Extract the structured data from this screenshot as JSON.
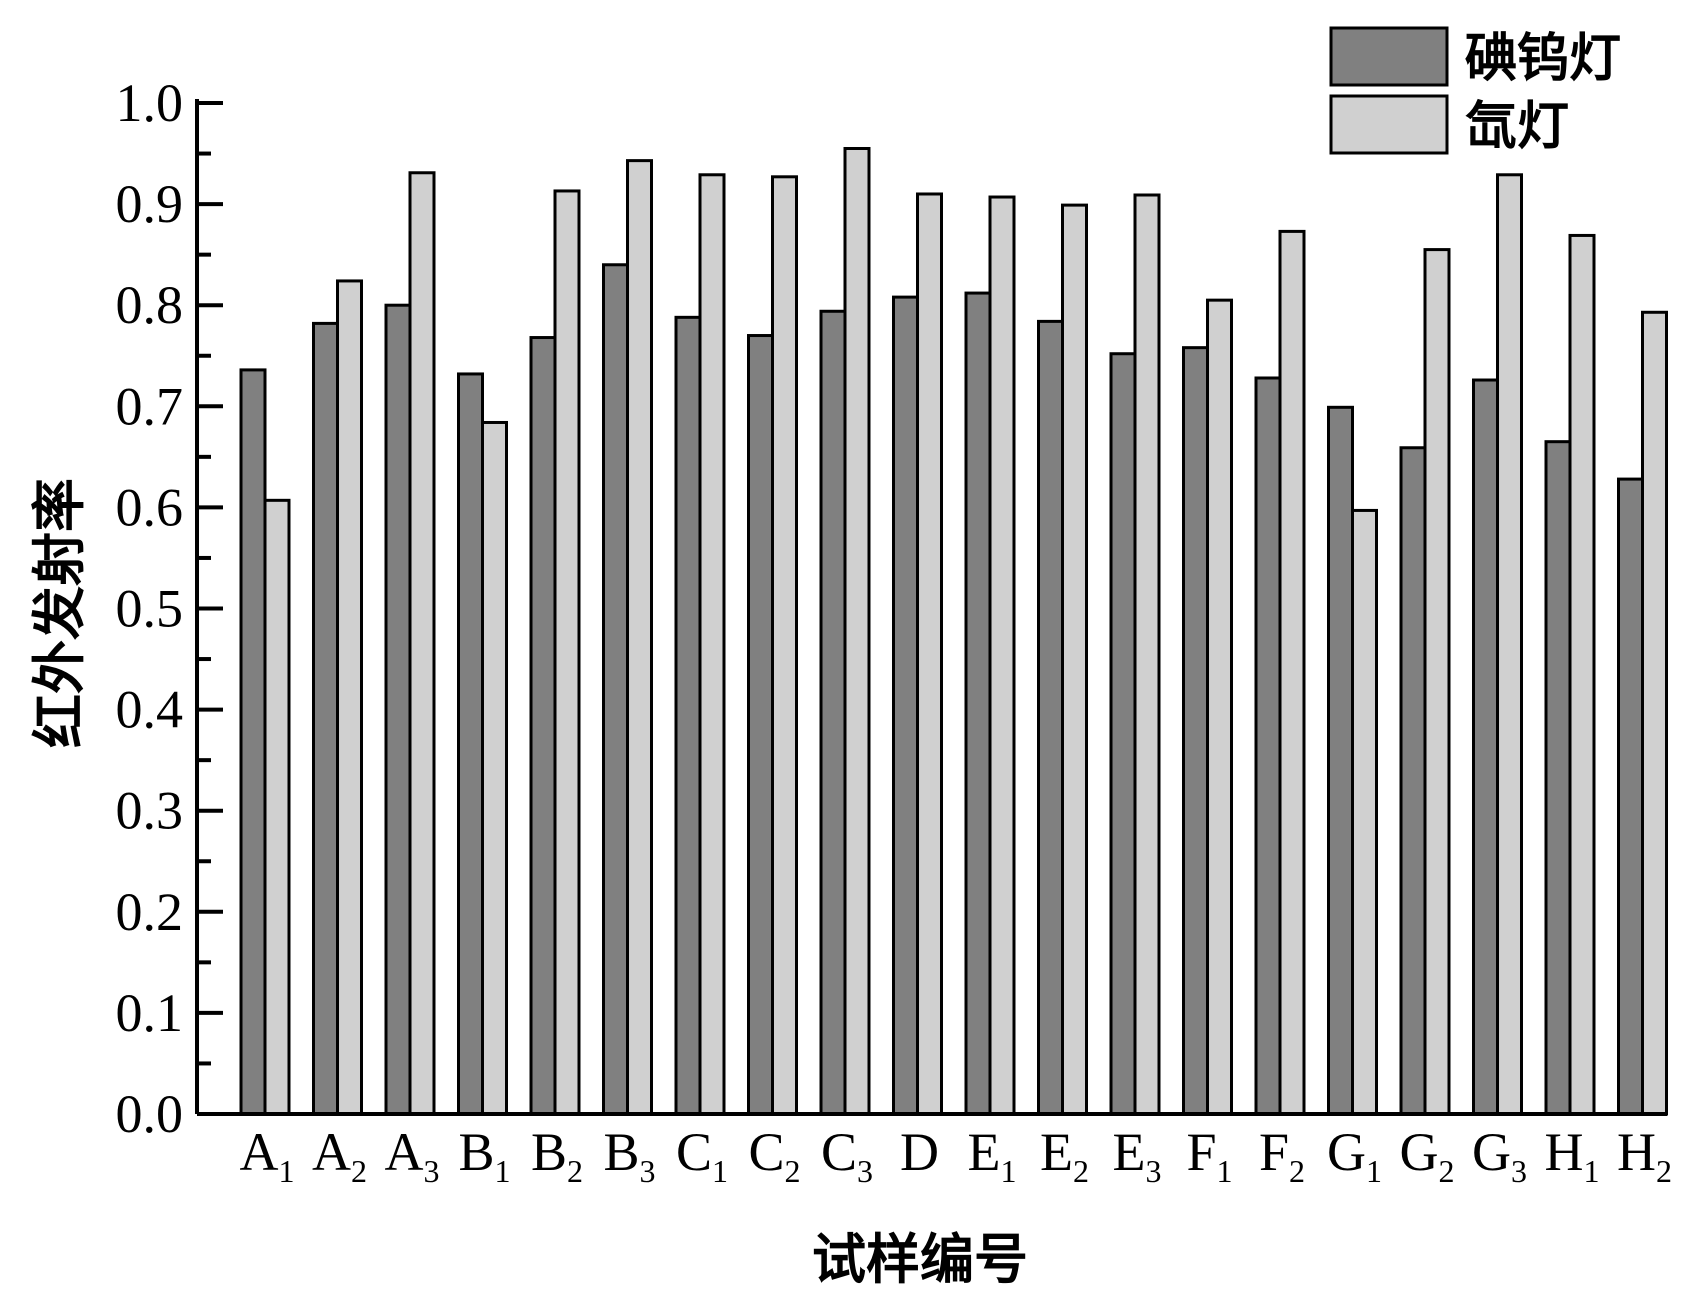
{
  "chart_data": {
    "type": "bar",
    "xlabel": "试样编号",
    "ylabel": "红外发射率",
    "ylim": [
      0.0,
      1.0
    ],
    "y_ticks": [
      "0.0",
      "0.1",
      "0.2",
      "0.3",
      "0.4",
      "0.5",
      "0.6",
      "0.7",
      "0.8",
      "0.9",
      "1.0"
    ],
    "legend_position": "top-right",
    "grid": false,
    "categories": [
      {
        "letter": "A",
        "sub": "1"
      },
      {
        "letter": "A",
        "sub": "2"
      },
      {
        "letter": "A",
        "sub": "3"
      },
      {
        "letter": "B",
        "sub": "1"
      },
      {
        "letter": "B",
        "sub": "2"
      },
      {
        "letter": "B",
        "sub": "3"
      },
      {
        "letter": "C",
        "sub": "1"
      },
      {
        "letter": "C",
        "sub": "2"
      },
      {
        "letter": "C",
        "sub": "3"
      },
      {
        "letter": "D",
        "sub": ""
      },
      {
        "letter": "E",
        "sub": "1"
      },
      {
        "letter": "E",
        "sub": "2"
      },
      {
        "letter": "E",
        "sub": "3"
      },
      {
        "letter": "F",
        "sub": "1"
      },
      {
        "letter": "F",
        "sub": "2"
      },
      {
        "letter": "G",
        "sub": "1"
      },
      {
        "letter": "G",
        "sub": "2"
      },
      {
        "letter": "G",
        "sub": "3"
      },
      {
        "letter": "H",
        "sub": "1"
      },
      {
        "letter": "H",
        "sub": "2"
      }
    ],
    "series": [
      {
        "name": "碘钨灯",
        "color": "#808080",
        "values": [
          0.736,
          0.782,
          0.8,
          0.732,
          0.768,
          0.84,
          0.788,
          0.77,
          0.794,
          0.808,
          0.812,
          0.784,
          0.752,
          0.758,
          0.728,
          0.699,
          0.659,
          0.726,
          0.665,
          0.628
        ]
      },
      {
        "name": "氙灯",
        "color": "#d0d0d0",
        "values": [
          0.607,
          0.824,
          0.931,
          0.684,
          0.913,
          0.943,
          0.929,
          0.927,
          0.955,
          0.91,
          0.907,
          0.899,
          0.909,
          0.805,
          0.873,
          0.597,
          0.855,
          0.929,
          0.869,
          0.793
        ]
      }
    ]
  }
}
